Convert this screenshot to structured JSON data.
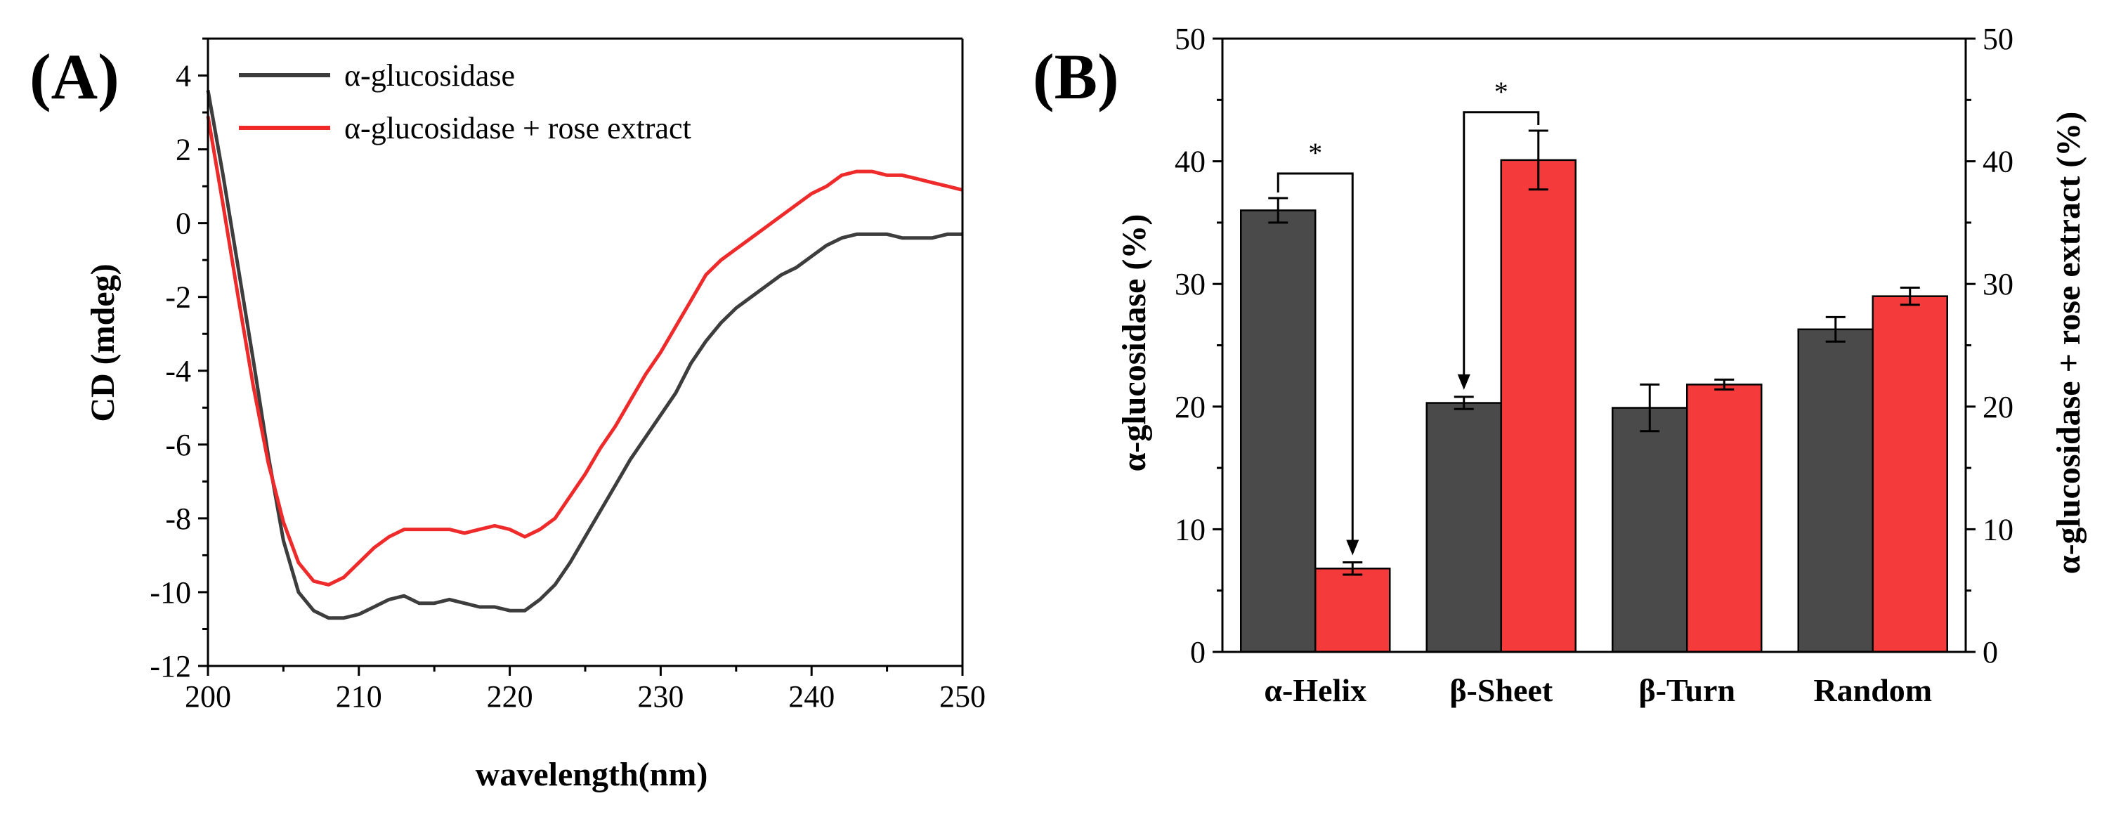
{
  "chart_data": [
    {
      "panel": "(A)",
      "type": "line",
      "xlabel": "wavelength(nm)",
      "ylabel": "CD (mdeg)",
      "xlim": [
        200,
        250
      ],
      "ylim": [
        -12,
        5
      ],
      "xticks": [
        200,
        210,
        220,
        230,
        240,
        250
      ],
      "yticks": [
        -12,
        -10,
        -8,
        -6,
        -4,
        -2,
        0,
        2,
        4
      ],
      "legend_position": "top-left",
      "series": [
        {
          "name": "α-glucosidase",
          "color": "#3d3d3d",
          "x": [
            200,
            201,
            202,
            203,
            204,
            205,
            206,
            207,
            208,
            209,
            210,
            211,
            212,
            213,
            214,
            215,
            216,
            217,
            218,
            219,
            220,
            221,
            222,
            223,
            224,
            225,
            226,
            227,
            228,
            229,
            230,
            231,
            232,
            233,
            234,
            235,
            236,
            237,
            238,
            239,
            240,
            241,
            242,
            243,
            244,
            245,
            246,
            247,
            248,
            249,
            250
          ],
          "y": [
            3.6,
            1.3,
            -1.2,
            -3.7,
            -6.3,
            -8.6,
            -10.0,
            -10.5,
            -10.7,
            -10.7,
            -10.6,
            -10.4,
            -10.2,
            -10.1,
            -10.3,
            -10.3,
            -10.2,
            -10.3,
            -10.4,
            -10.4,
            -10.5,
            -10.5,
            -10.2,
            -9.8,
            -9.2,
            -8.5,
            -7.8,
            -7.1,
            -6.4,
            -5.8,
            -5.2,
            -4.6,
            -3.8,
            -3.2,
            -2.7,
            -2.3,
            -2.0,
            -1.7,
            -1.4,
            -1.2,
            -0.9,
            -0.6,
            -0.4,
            -0.3,
            -0.3,
            -0.3,
            -0.4,
            -0.4,
            -0.4,
            -0.3,
            -0.3
          ]
        },
        {
          "name": "α-glucosidase + rose extract",
          "color": "#ee2a2a",
          "x": [
            200,
            201,
            202,
            203,
            204,
            205,
            206,
            207,
            208,
            209,
            210,
            211,
            212,
            213,
            214,
            215,
            216,
            217,
            218,
            219,
            220,
            221,
            222,
            223,
            224,
            225,
            226,
            227,
            228,
            229,
            230,
            231,
            232,
            233,
            234,
            235,
            236,
            237,
            238,
            239,
            240,
            241,
            242,
            243,
            244,
            245,
            246,
            247,
            248,
            249,
            250
          ],
          "y": [
            2.9,
            0.5,
            -2.0,
            -4.4,
            -6.5,
            -8.1,
            -9.2,
            -9.7,
            -9.8,
            -9.6,
            -9.2,
            -8.8,
            -8.5,
            -8.3,
            -8.3,
            -8.3,
            -8.3,
            -8.4,
            -8.3,
            -8.2,
            -8.3,
            -8.5,
            -8.3,
            -8.0,
            -7.4,
            -6.8,
            -6.1,
            -5.5,
            -4.8,
            -4.1,
            -3.5,
            -2.8,
            -2.1,
            -1.4,
            -1.0,
            -0.7,
            -0.4,
            -0.1,
            0.2,
            0.5,
            0.8,
            1.0,
            1.3,
            1.4,
            1.4,
            1.3,
            1.3,
            1.2,
            1.1,
            1.0,
            0.9
          ]
        }
      ]
    },
    {
      "panel": "(B)",
      "type": "bar",
      "categories": [
        "α-Helix",
        "β-Sheet",
        "β-Turn",
        "Random"
      ],
      "ylabel_left": "α-glucosidase (%)",
      "ylabel_right": "α-glucosidase + rose extract (%)",
      "ylim": [
        0,
        50
      ],
      "yticks": [
        0,
        10,
        20,
        30,
        40,
        50
      ],
      "series": [
        {
          "name": "α-glucosidase",
          "color": "#4a4a4a",
          "values": [
            36.0,
            20.3,
            19.9,
            26.3
          ],
          "errors": [
            1.0,
            0.5,
            1.9,
            1.0
          ]
        },
        {
          "name": "α-glucosidase + rose extract",
          "color": "#f43a3a",
          "values": [
            6.8,
            40.1,
            21.8,
            29.0
          ],
          "errors": [
            0.5,
            2.4,
            0.4,
            0.7
          ]
        }
      ],
      "annotations": [
        {
          "category": "α-Helix",
          "from_series": 0,
          "to_series": 1,
          "label": "*",
          "y_level": 39.0
        },
        {
          "category": "β-Sheet",
          "from_series": 1,
          "to_series": 0,
          "label": "*",
          "y_level": 44.0
        }
      ]
    }
  ]
}
